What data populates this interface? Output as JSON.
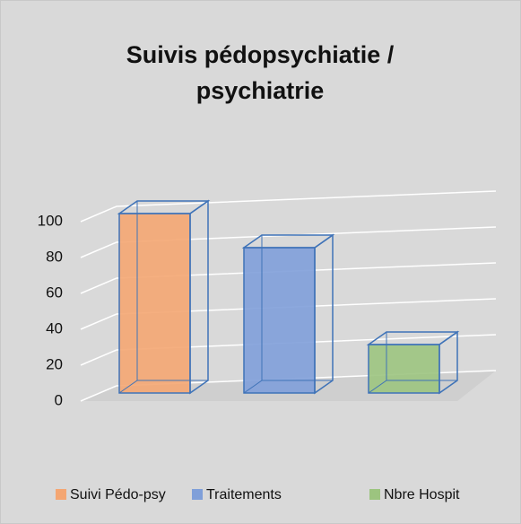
{
  "chart_data": {
    "type": "bar3d",
    "title": [
      "Suivis pédopsychiatie /",
      "psychiatrie"
    ],
    "series": [
      {
        "name": "Suivi Pédo-psy",
        "color": "#f4a672",
        "values": [
          100
        ]
      },
      {
        "name": "Traitements",
        "color": "#7f9fd9",
        "values": [
          81
        ]
      },
      {
        "name": "Nbre Hospit",
        "color": "#9cc47f",
        "values": [
          27
        ]
      }
    ],
    "ylim": [
      0,
      100
    ],
    "yticks": [
      0,
      20,
      40,
      60,
      80,
      100
    ],
    "grid": true,
    "legend": "bottom"
  }
}
